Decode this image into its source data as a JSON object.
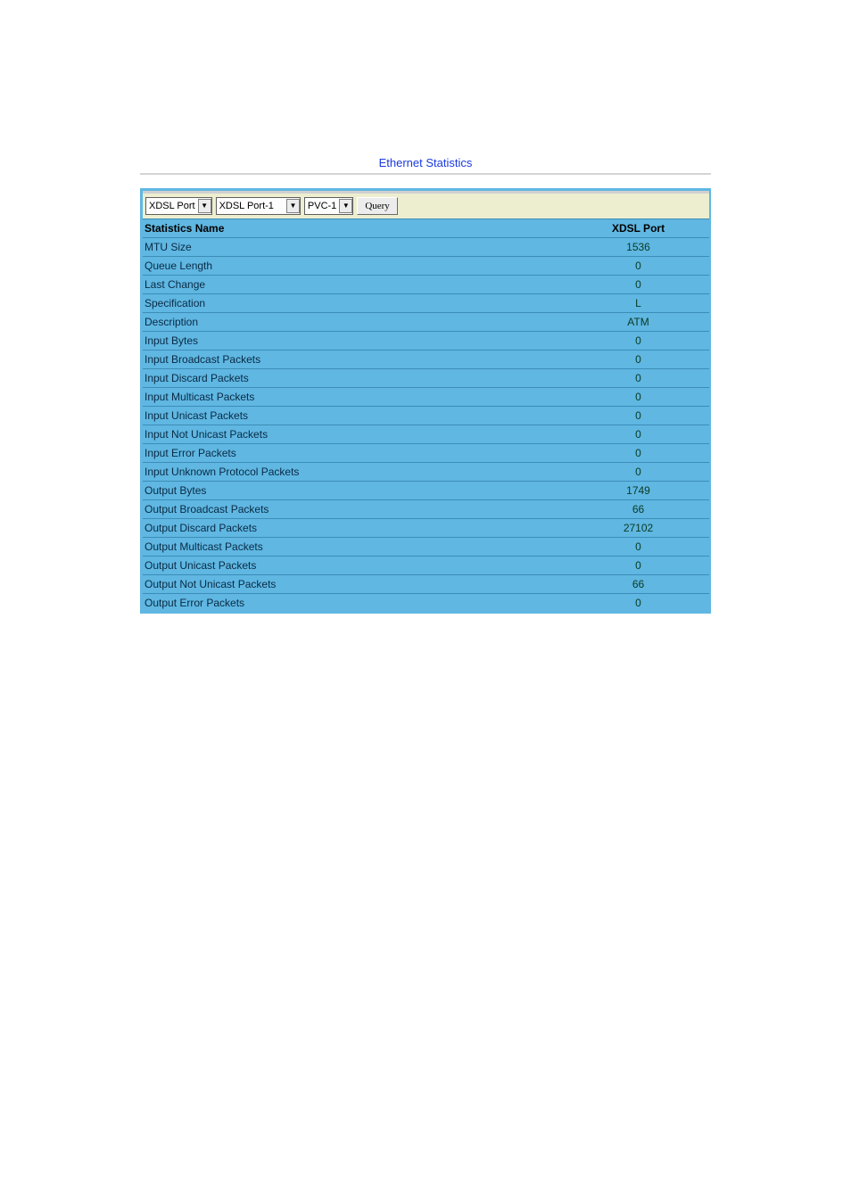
{
  "title": "Ethernet Statistics",
  "selectors": {
    "type": "XDSL Port",
    "port": "XDSL Port-1",
    "pvc": "PVC-1"
  },
  "query_label": "Query",
  "columns": {
    "name": "Statistics Name",
    "value": "XDSL Port"
  },
  "rows": [
    {
      "name": "MTU Size",
      "value": "1536"
    },
    {
      "name": "Queue Length",
      "value": "0"
    },
    {
      "name": "Last Change",
      "value": "0"
    },
    {
      "name": "Specification",
      "value": "L"
    },
    {
      "name": "Description",
      "value": "ATM"
    },
    {
      "name": "Input Bytes",
      "value": "0"
    },
    {
      "name": "Input Broadcast Packets",
      "value": "0"
    },
    {
      "name": "Input Discard Packets",
      "value": "0"
    },
    {
      "name": "Input Multicast Packets",
      "value": "0"
    },
    {
      "name": "Input Unicast Packets",
      "value": "0"
    },
    {
      "name": "Input Not Unicast Packets",
      "value": "0"
    },
    {
      "name": "Input Error Packets",
      "value": "0"
    },
    {
      "name": "Input Unknown Protocol Packets",
      "value": "0"
    },
    {
      "name": "Output Bytes",
      "value": "1749"
    },
    {
      "name": "Output Broadcast Packets",
      "value": "66"
    },
    {
      "name": "Output Discard Packets",
      "value": "27102"
    },
    {
      "name": "Output Multicast Packets",
      "value": "0"
    },
    {
      "name": "Output Unicast Packets",
      "value": "0"
    },
    {
      "name": "Output Not Unicast Packets",
      "value": "66"
    },
    {
      "name": "Output Error Packets",
      "value": "0"
    }
  ],
  "colors": {
    "title": "#1a3ae0",
    "panel_border": "#5fb7e2",
    "row_bg": "#5fb7e2",
    "row_divider": "#3b8db6",
    "strip_bg": "#eceecf"
  }
}
